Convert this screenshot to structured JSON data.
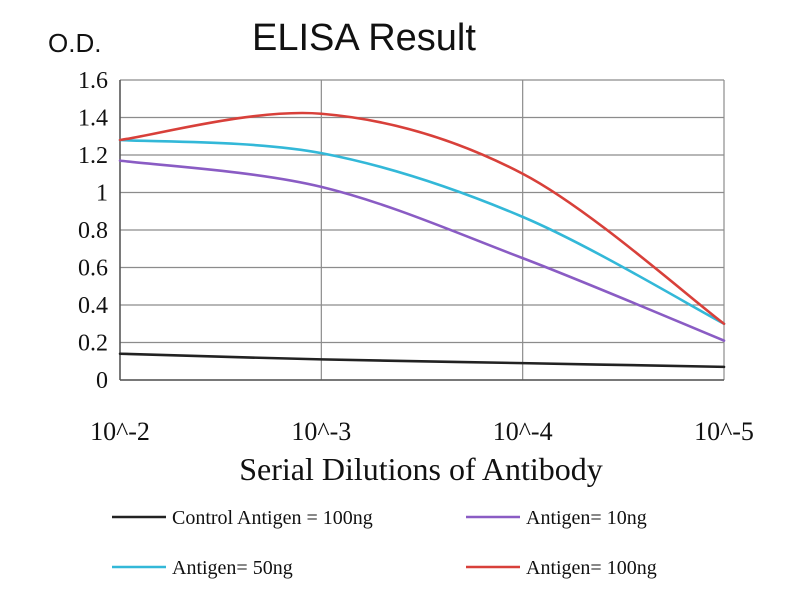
{
  "chart_data": {
    "type": "line",
    "title": "ELISA Result",
    "ylabel": "O.D.",
    "xlabel": "Serial Dilutions of Antibody",
    "categories": [
      "10^-2",
      "10^-3",
      "10^-4",
      "10^-5"
    ],
    "y_ticks": [
      "0",
      "0.2",
      "0.4",
      "0.6",
      "0.8",
      "1",
      "1.2",
      "1.4",
      "1.6"
    ],
    "ylim": [
      0,
      1.6
    ],
    "grid": true,
    "legend_position": "bottom",
    "series": [
      {
        "name": "Control Antigen = 100ng",
        "color": "#222222",
        "values": [
          0.14,
          0.11,
          0.09,
          0.07
        ]
      },
      {
        "name": "Antigen= 10ng",
        "color": "#8a5cc4",
        "values": [
          1.17,
          1.03,
          0.65,
          0.21
        ]
      },
      {
        "name": "Antigen= 50ng",
        "color": "#33b8d8",
        "values": [
          1.28,
          1.21,
          0.87,
          0.3
        ]
      },
      {
        "name": "Antigen= 100ng",
        "color": "#d8403a",
        "values": [
          1.28,
          1.42,
          1.1,
          0.3
        ]
      }
    ]
  }
}
